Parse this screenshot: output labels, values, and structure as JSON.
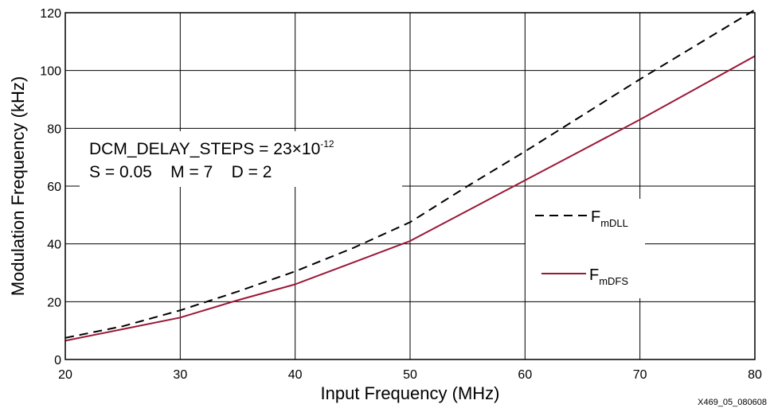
{
  "chart_data": {
    "type": "line",
    "xlabel": "Input Frequency (MHz)",
    "ylabel": "Modulation Frequency (kHz)",
    "xlim": [
      20,
      80
    ],
    "ylim": [
      0,
      120
    ],
    "xticks": [
      "20",
      "30",
      "40",
      "50",
      "60",
      "70",
      "80"
    ],
    "yticks": [
      "0",
      "20",
      "40",
      "60",
      "80",
      "100",
      "120"
    ],
    "grid": true,
    "annotation": {
      "line1_main": "DCM_DELAY_STEPS = 23×10",
      "line1_exp": "-12",
      "line2": "S = 0.05    M = 7    D = 2"
    },
    "legend_position": "right",
    "series": [
      {
        "name_main": "F",
        "name_sub": "mDLL",
        "style": "dashed",
        "color": "#000000",
        "x": [
          20,
          25,
          30,
          35,
          40,
          45,
          50,
          55,
          60,
          65,
          70,
          75,
          80
        ],
        "y": [
          7.5,
          11.5,
          17,
          23.5,
          30.5,
          38.5,
          47.5,
          60,
          72,
          84.5,
          97,
          109,
          121
        ]
      },
      {
        "name_main": "F",
        "name_sub": "mDFS",
        "style": "solid",
        "color": "#9b1737",
        "x": [
          20,
          25,
          30,
          35,
          40,
          45,
          50,
          55,
          60,
          65,
          70,
          75,
          80
        ],
        "y": [
          6.5,
          10.5,
          14.5,
          20.5,
          26,
          33.5,
          41,
          51.5,
          62,
          72.5,
          83,
          94,
          105
        ]
      }
    ]
  },
  "figure_id": "X469_05_080608"
}
